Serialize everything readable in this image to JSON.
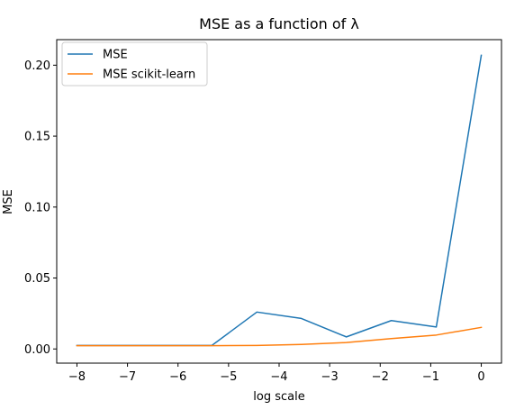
{
  "chart_data": {
    "type": "line",
    "title": "MSE as a function of λ",
    "xlabel": "log scale",
    "ylabel": "MSE",
    "xlim": [
      -8.4,
      0.4
    ],
    "ylim": [
      -0.01,
      0.218
    ],
    "xticks": [
      -8,
      -7,
      -6,
      -5,
      -4,
      -3,
      -2,
      -1,
      0
    ],
    "xtick_labels": [
      "−8",
      "−7",
      "−6",
      "−5",
      "−4",
      "−3",
      "−2",
      "−1",
      "0"
    ],
    "yticks": [
      0.0,
      0.05,
      0.1,
      0.15,
      0.2
    ],
    "ytick_labels": [
      "0.00",
      "0.05",
      "0.10",
      "0.15",
      "0.20"
    ],
    "grid": false,
    "legend_position": "top-left",
    "x": [
      -8,
      -7.11,
      -6.22,
      -5.33,
      -4.44,
      -3.56,
      -2.67,
      -1.78,
      -0.89,
      0
    ],
    "series": [
      {
        "name": "MSE",
        "color": "#1f77b4",
        "values": [
          0.0025,
          0.0025,
          0.0025,
          0.0025,
          0.026,
          0.0215,
          0.0085,
          0.02,
          0.0155,
          0.207
        ]
      },
      {
        "name": "MSE scikit-learn",
        "color": "#ff7f0e",
        "values": [
          0.0023,
          0.0023,
          0.0023,
          0.0023,
          0.0025,
          0.0032,
          0.0045,
          0.0073,
          0.0098,
          0.0152
        ]
      }
    ]
  }
}
